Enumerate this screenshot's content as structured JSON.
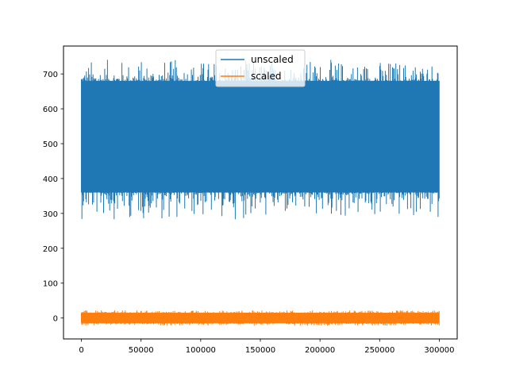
{
  "chart_data": {
    "type": "line",
    "title": "",
    "xlabel": "",
    "ylabel": "",
    "xlim": [
      -15000,
      315000
    ],
    "ylim": [
      -60,
      780
    ],
    "x_ticks": [
      0,
      50000,
      100000,
      150000,
      200000,
      250000,
      300000
    ],
    "x_tick_labels": [
      "0",
      "50000",
      "100000",
      "150000",
      "200000",
      "250000",
      "300000"
    ],
    "y_ticks": [
      0,
      100,
      200,
      300,
      400,
      500,
      600,
      700
    ],
    "y_tick_labels": [
      "0",
      "100",
      "200",
      "300",
      "400",
      "500",
      "600",
      "700"
    ],
    "grid": false,
    "legend_position": "upper center",
    "series": [
      {
        "name": "unscaled",
        "color": "#1f77b4",
        "x_range": [
          0,
          300000
        ],
        "n_points_approx": 300000,
        "description": "dense noisy signal",
        "mean_approx": 515,
        "band_low_approx": 360,
        "band_high_approx": 680,
        "min_approx": 282,
        "max_approx": 742
      },
      {
        "name": "scaled",
        "color": "#ff7f0e",
        "x_range": [
          0,
          300000
        ],
        "n_points_approx": 300000,
        "description": "dense noisy signal centered near zero",
        "mean_approx": 0,
        "band_low_approx": -15,
        "band_high_approx": 15,
        "min_approx": -22,
        "max_approx": 22
      }
    ]
  },
  "legend": {
    "items": [
      {
        "label": "unscaled",
        "color": "#1f77b4"
      },
      {
        "label": "scaled",
        "color": "#ff7f0e"
      }
    ]
  }
}
